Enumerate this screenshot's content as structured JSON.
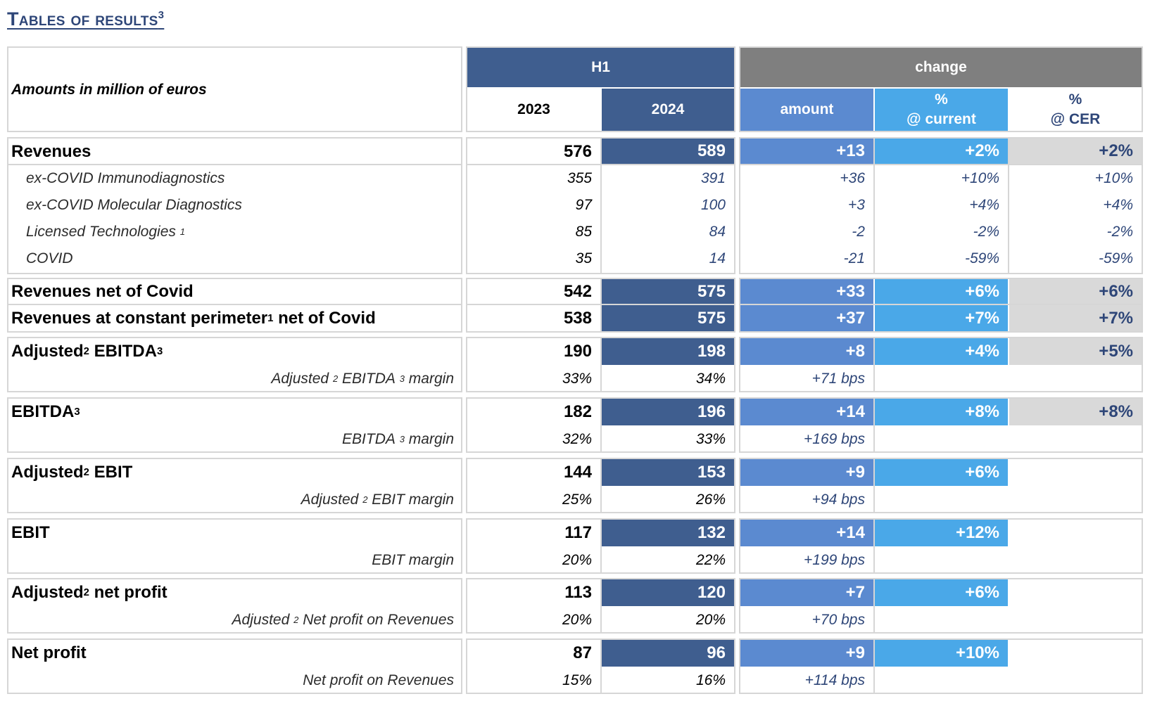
{
  "title": {
    "text": "Tables of results",
    "sup": "3"
  },
  "header": {
    "amounts_label": "Amounts in million of euros",
    "h1": "H1",
    "change": "change",
    "y2023": "2023",
    "y2024": "2024",
    "amount": "amount",
    "pct_current_1": "%",
    "pct_current_2": "@ current",
    "pct_cer_1": "%",
    "pct_cer_2": "@ CER"
  },
  "rows": {
    "revenues": {
      "label": "Revenues",
      "v2023": "576",
      "v2024": "589",
      "amount": "+13",
      "pct": "+2%",
      "cer": "+2%"
    },
    "immuno": {
      "label": "ex-COVID Immunodiagnostics",
      "v2023": "355",
      "v2024": "391",
      "amount": "+36",
      "pct": "+10%",
      "cer": "+10%"
    },
    "molecular": {
      "label": "ex-COVID Molecular Diagnostics",
      "v2023": "97",
      "v2024": "100",
      "amount": "+3",
      "pct": "+4%",
      "cer": "+4%"
    },
    "licensed": {
      "label": "Licensed Technologies",
      "sup": "1",
      "v2023": "85",
      "v2024": "84",
      "amount": "-2",
      "pct": "-2%",
      "cer": "-2%"
    },
    "covid": {
      "label": "COVID",
      "v2023": "35",
      "v2024": "14",
      "amount": "-21",
      "pct": "-59%",
      "cer": "-59%"
    },
    "net_covid": {
      "label": "Revenues net of Covid",
      "v2023": "542",
      "v2024": "575",
      "amount": "+33",
      "pct": "+6%",
      "cer": "+6%"
    },
    "const_perim": {
      "label_a": "Revenues at constant perimeter",
      "sup": "1",
      "label_b": " net of Covid",
      "v2023": "538",
      "v2024": "575",
      "amount": "+37",
      "pct": "+7%",
      "cer": "+7%"
    },
    "adj_ebitda": {
      "label_a": "Adjusted",
      "sup_a": "2",
      "label_b": " EBITDA",
      "sup_b": "3",
      "v2023": "190",
      "v2024": "198",
      "amount": "+8",
      "pct": "+4%",
      "cer": "+5%",
      "margin_a": "Adjusted",
      "margin_sup_a": "2",
      "margin_b": " EBITDA",
      "margin_sup_b": "3",
      "margin_c": " margin",
      "m2023": "33%",
      "m2024": "34%",
      "mchange": "+71 bps"
    },
    "ebitda": {
      "label": "EBITDA",
      "sup": "3",
      "v2023": "182",
      "v2024": "196",
      "amount": "+14",
      "pct": "+8%",
      "cer": "+8%",
      "margin_a": "EBITDA",
      "margin_sup": "3",
      "margin_b": " margin",
      "m2023": "32%",
      "m2024": "33%",
      "mchange": "+169 bps"
    },
    "adj_ebit": {
      "label_a": "Adjusted",
      "sup": "2",
      "label_b": " EBIT",
      "v2023": "144",
      "v2024": "153",
      "amount": "+9",
      "pct": "+6%",
      "margin_a": "Adjusted",
      "margin_sup": "2",
      "margin_b": " EBIT margin",
      "m2023": "25%",
      "m2024": "26%",
      "mchange": "+94 bps"
    },
    "ebit": {
      "label": "EBIT",
      "v2023": "117",
      "v2024": "132",
      "amount": "+14",
      "pct": "+12%",
      "margin": "EBIT margin",
      "m2023": "20%",
      "m2024": "22%",
      "mchange": "+199 bps"
    },
    "adj_np": {
      "label_a": "Adjusted",
      "sup": "2",
      "label_b": " net profit",
      "v2023": "113",
      "v2024": "120",
      "amount": "+7",
      "pct": "+6%",
      "margin_a": "Adjusted",
      "margin_sup": "2",
      "margin_b": " Net profit on Revenues",
      "m2023": "20%",
      "m2024": "20%",
      "mchange": "+70 bps"
    },
    "np": {
      "label": "Net profit",
      "v2023": "87",
      "v2024": "96",
      "amount": "+9",
      "pct": "+10%",
      "margin": "Net profit on Revenues",
      "m2023": "15%",
      "m2024": "16%",
      "mchange": "+114 bps"
    }
  }
}
